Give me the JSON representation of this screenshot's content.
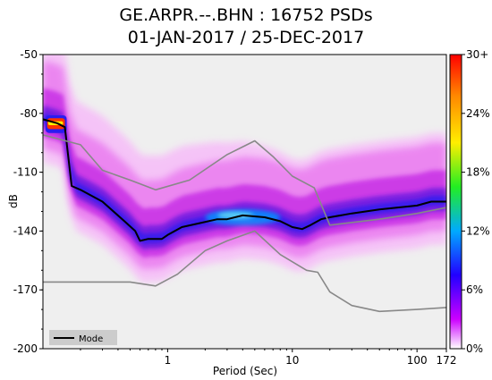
{
  "title_line1": "GE.ARPR.--.BHN : 16752 PSDs",
  "title_line2": "01-JAN-2017 / 25-DEC-2017",
  "chart_data": {
    "type": "heatmap",
    "title": "GE.ARPR.--.BHN : 16752 PSDs",
    "subtitle": "01-JAN-2017 / 25-DEC-2017",
    "xlabel": "Period (Sec)",
    "ylabel": "dB",
    "x_scale": "log",
    "xlim": [
      0.1,
      172
    ],
    "ylim": [
      -200,
      -50
    ],
    "x_ticks": [
      {
        "value": 1,
        "label": "1"
      },
      {
        "value": 10,
        "label": "10"
      },
      {
        "value": 100,
        "label": "100"
      },
      {
        "value": 172,
        "label": "172"
      }
    ],
    "y_ticks": [
      {
        "value": -50,
        "label": "-50"
      },
      {
        "value": -80,
        "label": "-80"
      },
      {
        "value": -110,
        "label": "-110"
      },
      {
        "value": -140,
        "label": "-140"
      },
      {
        "value": -170,
        "label": "-170"
      },
      {
        "value": -200,
        "label": "-200"
      }
    ],
    "colorbar": {
      "labels": [
        "30+",
        "24%",
        "18%",
        "12%",
        "6%",
        "0%"
      ],
      "values": [
        30,
        24,
        18,
        12,
        6,
        0
      ],
      "colors": [
        "#ff0000",
        "#ff8800",
        "#ffee00",
        "#22ee22",
        "#00aaff",
        "#2200ff",
        "#cc00ff",
        "#ffffff"
      ]
    },
    "legend": {
      "entries": [
        "Mode"
      ],
      "placement": "bottom-left"
    },
    "series": [
      {
        "name": "Mode",
        "color": "#000000",
        "points": [
          [
            0.1,
            -83
          ],
          [
            0.13,
            -85
          ],
          [
            0.15,
            -87
          ],
          [
            0.17,
            -117
          ],
          [
            0.2,
            -119
          ],
          [
            0.3,
            -125
          ],
          [
            0.45,
            -135
          ],
          [
            0.55,
            -140
          ],
          [
            0.6,
            -145
          ],
          [
            0.7,
            -144
          ],
          [
            0.8,
            -144
          ],
          [
            0.9,
            -144
          ],
          [
            1.0,
            -142
          ],
          [
            1.3,
            -138
          ],
          [
            1.8,
            -136
          ],
          [
            2.5,
            -134
          ],
          [
            3.0,
            -134
          ],
          [
            4.0,
            -132
          ],
          [
            6.0,
            -133
          ],
          [
            8.0,
            -135
          ],
          [
            10,
            -138
          ],
          [
            12,
            -139
          ],
          [
            14,
            -137
          ],
          [
            17,
            -134
          ],
          [
            20,
            -133
          ],
          [
            30,
            -131
          ],
          [
            50,
            -129
          ],
          [
            70,
            -128
          ],
          [
            100,
            -127
          ],
          [
            130,
            -125
          ],
          [
            172,
            -125
          ]
        ]
      },
      {
        "color": "#888888",
        "points": [
          [
            0.1,
            -91
          ],
          [
            0.2,
            -96
          ],
          [
            0.3,
            -109
          ],
          [
            0.5,
            -114
          ],
          [
            0.8,
            -119
          ],
          [
            1.5,
            -114
          ],
          [
            3,
            -101
          ],
          [
            5,
            -94
          ],
          [
            7,
            -102
          ],
          [
            10,
            -112
          ],
          [
            15,
            -118
          ],
          [
            20,
            -137
          ],
          [
            50,
            -134
          ],
          [
            100,
            -131
          ],
          [
            172,
            -128
          ]
        ]
      },
      {
        "color": "#888888",
        "points": [
          [
            0.1,
            -166
          ],
          [
            0.3,
            -166
          ],
          [
            0.5,
            -166
          ],
          [
            0.8,
            -168
          ],
          [
            1.2,
            -162
          ],
          [
            2,
            -150
          ],
          [
            3,
            -145
          ],
          [
            5,
            -140
          ],
          [
            8,
            -152
          ],
          [
            13,
            -160
          ],
          [
            16,
            -161
          ],
          [
            20,
            -171
          ],
          [
            30,
            -178
          ],
          [
            50,
            -181
          ],
          [
            100,
            -180
          ],
          [
            172,
            -179
          ]
        ]
      }
    ]
  }
}
